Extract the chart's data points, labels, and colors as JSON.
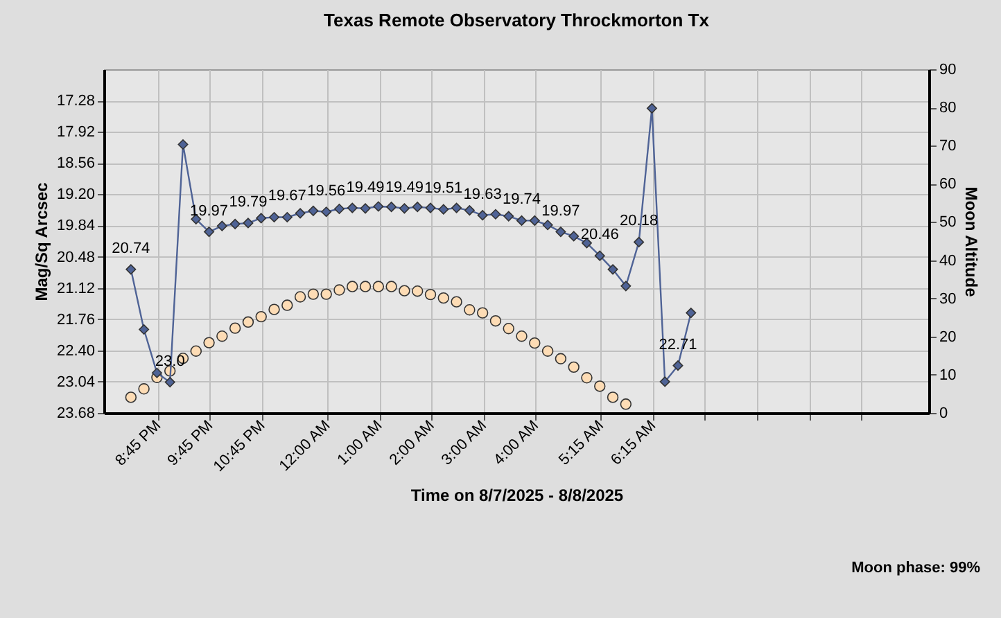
{
  "chart_data": {
    "type": "line",
    "title": "Texas Remote Observatory   Throckmorton Tx",
    "xlabel": "Time on 8/7/2025 - 8/8/2025",
    "ylabel": "Mag/Sq Arcsec",
    "y2label": "Moon Altitude",
    "xlim": [
      "2025-08-07T19:43",
      "2025-08-08T11:33"
    ],
    "xticks": [
      {
        "value": "2025-08-07T20:45",
        "label": "8:45 PM"
      },
      {
        "value": "2025-08-07T21:45",
        "label": "9:45 PM"
      },
      {
        "value": "2025-08-07T22:45",
        "label": "10:45 PM"
      },
      {
        "value": "2025-08-08T00:00",
        "label": "12:00 AM"
      },
      {
        "value": "2025-08-08T01:00",
        "label": "1:00 AM"
      },
      {
        "value": "2025-08-08T02:00",
        "label": "2:00 AM"
      },
      {
        "value": "2025-08-08T03:00",
        "label": "3:00 AM"
      },
      {
        "value": "2025-08-08T04:00",
        "label": "4:00 AM"
      },
      {
        "value": "2025-08-08T05:15",
        "label": "5:15 AM"
      },
      {
        "value": "2025-08-08T06:15",
        "label": "6:15 AM"
      },
      {
        "value": "2025-08-08T07:15",
        "label": null
      },
      {
        "value": "2025-08-08T08:15",
        "label": null
      },
      {
        "value": "2025-08-08T09:15",
        "label": null
      },
      {
        "value": "2025-08-08T10:15",
        "label": null
      }
    ],
    "ylim": [
      23.68,
      16.64
    ],
    "yticks": [
      17.28,
      17.92,
      18.56,
      {
        "value": 19.2,
        "label": "19.20"
      },
      19.84,
      20.48,
      21.12,
      21.76,
      {
        "value": 22.4,
        "label": "22.40"
      },
      23.04,
      23.68
    ],
    "y2lim": [
      0,
      90
    ],
    "y2ticks": [
      0,
      10,
      20,
      30,
      40,
      50,
      60,
      70,
      80,
      90
    ],
    "grid": true,
    "series": [
      {
        "marker": "diamond",
        "color": "#4f6396",
        "x": [
          "2025-08-07T20:14",
          "2025-08-07T20:29",
          "2025-08-07T20:44",
          "2025-08-07T20:59",
          "2025-08-07T21:14",
          "2025-08-07T21:29",
          "2025-08-07T21:44",
          "2025-08-07T21:59",
          "2025-08-07T22:14",
          "2025-08-07T22:29",
          "2025-08-07T22:44",
          "2025-08-07T22:59",
          "2025-08-07T23:14",
          "2025-08-07T23:29",
          "2025-08-07T23:44",
          "2025-08-07T23:59",
          "2025-08-08T00:14",
          "2025-08-08T00:29",
          "2025-08-08T00:44",
          "2025-08-08T00:59",
          "2025-08-08T01:14",
          "2025-08-08T01:29",
          "2025-08-08T01:44",
          "2025-08-08T01:59",
          "2025-08-08T02:14",
          "2025-08-08T02:29",
          "2025-08-08T02:44",
          "2025-08-08T02:59",
          "2025-08-08T03:14",
          "2025-08-08T03:29",
          "2025-08-08T03:44",
          "2025-08-08T03:59",
          "2025-08-08T04:14",
          "2025-08-08T04:29",
          "2025-08-08T04:44",
          "2025-08-08T04:59",
          "2025-08-08T05:14",
          "2025-08-08T05:29",
          "2025-08-08T05:44",
          "2025-08-08T05:59",
          "2025-08-08T06:14",
          "2025-08-08T06:29",
          "2025-08-08T06:44",
          "2025-08-08T06:59"
        ],
        "values": [
          20.74,
          21.97,
          22.86,
          23.05,
          18.18,
          19.71,
          19.97,
          19.85,
          19.81,
          19.79,
          19.69,
          19.67,
          19.67,
          19.59,
          19.54,
          19.56,
          19.5,
          19.48,
          19.49,
          19.45,
          19.46,
          19.49,
          19.46,
          19.48,
          19.51,
          19.48,
          19.53,
          19.63,
          19.61,
          19.65,
          19.74,
          19.74,
          19.83,
          19.97,
          20.06,
          20.2,
          20.46,
          20.74,
          21.08,
          20.18,
          17.44,
          23.04,
          22.71,
          21.63
        ],
        "value_labels": [
          "20.74",
          null,
          null,
          "23.0",
          null,
          null,
          "19.97",
          null,
          null,
          "19.79",
          null,
          null,
          "19.67",
          null,
          null,
          "19.56",
          null,
          null,
          "19.49",
          null,
          null,
          "19.49",
          null,
          null,
          "19.51",
          null,
          null,
          "19.63",
          null,
          null,
          "19.74",
          null,
          null,
          "19.97",
          null,
          null,
          "20.46",
          null,
          null,
          "20.18",
          null,
          null,
          "22.71",
          null
        ]
      },
      {
        "type": "scatter",
        "marker": "circle",
        "axis": "y2",
        "color": "#fddcb5",
        "x": [
          "2025-08-07T20:14",
          "2025-08-07T20:29",
          "2025-08-07T20:44",
          "2025-08-07T20:59",
          "2025-08-07T21:14",
          "2025-08-07T21:29",
          "2025-08-07T21:44",
          "2025-08-07T21:59",
          "2025-08-07T22:14",
          "2025-08-07T22:29",
          "2025-08-07T22:44",
          "2025-08-07T22:59",
          "2025-08-07T23:14",
          "2025-08-07T23:29",
          "2025-08-07T23:44",
          "2025-08-07T23:59",
          "2025-08-08T00:14",
          "2025-08-08T00:29",
          "2025-08-08T00:44",
          "2025-08-08T00:59",
          "2025-08-08T01:14",
          "2025-08-08T01:29",
          "2025-08-08T01:44",
          "2025-08-08T01:59",
          "2025-08-08T02:14",
          "2025-08-08T02:29",
          "2025-08-08T02:44",
          "2025-08-08T02:59",
          "2025-08-08T03:14",
          "2025-08-08T03:29",
          "2025-08-08T03:44",
          "2025-08-08T03:59",
          "2025-08-08T04:14",
          "2025-08-08T04:29",
          "2025-08-08T04:44",
          "2025-08-08T04:59",
          "2025-08-08T05:14",
          "2025-08-08T05:29",
          "2025-08-08T05:44"
        ],
        "values": [
          4.1,
          6.3,
          9.3,
          11.0,
          14.3,
          16.2,
          18.4,
          20.1,
          22.2,
          23.8,
          25.2,
          27.1,
          28.2,
          30.4,
          31.1,
          31.1,
          32.2,
          33.1,
          33.1,
          33.1,
          33.1,
          32.0,
          31.9,
          31.0,
          30.1,
          29.1,
          27.0,
          26.2,
          24.1,
          22.1,
          20.1,
          18.3,
          16.2,
          14.2,
          12.0,
          9.2,
          7.0,
          4.1,
          2.3
        ]
      }
    ],
    "annotations": [
      "Moon phase: 99%"
    ]
  }
}
